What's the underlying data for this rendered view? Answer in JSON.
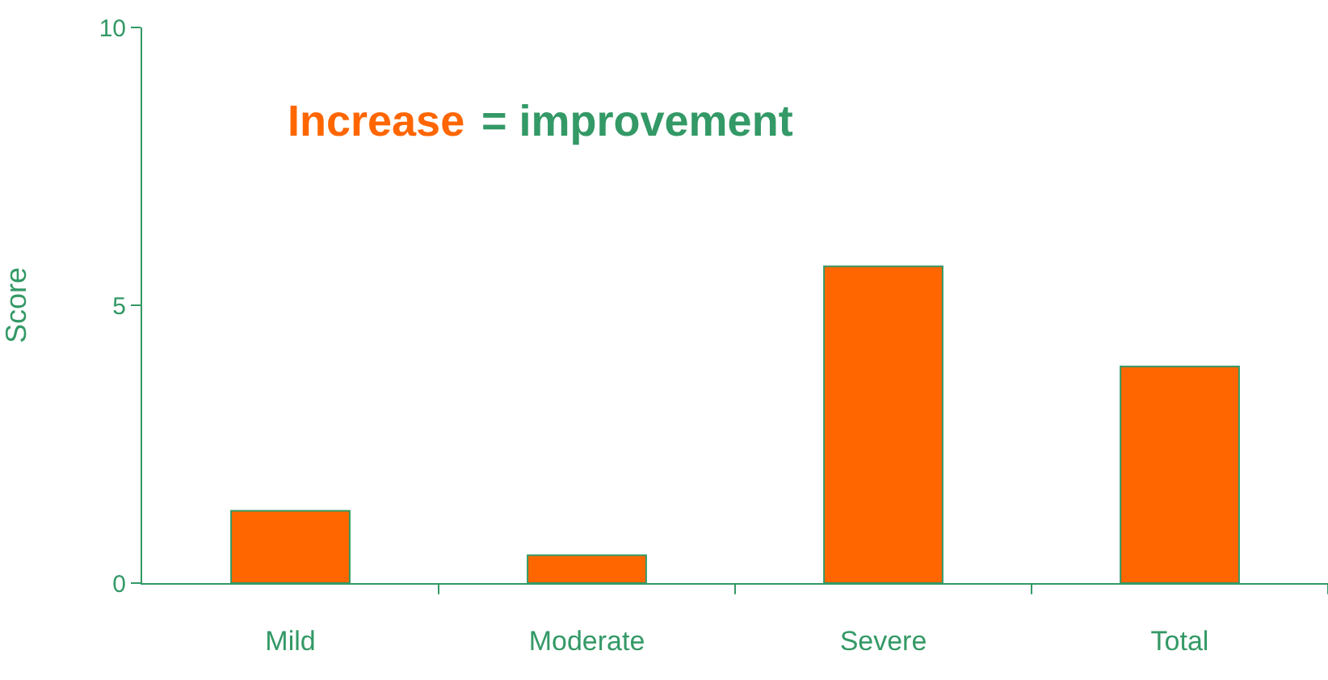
{
  "chart_data": {
    "type": "bar",
    "ylabel": "Score",
    "categories": [
      "Mild",
      "Moderate",
      "Severe",
      "Total"
    ],
    "values": [
      1.3,
      0.5,
      5.7,
      3.9
    ],
    "color": "#ff6600",
    "ylim": [
      0,
      10
    ],
    "yticks": [
      0,
      5,
      10
    ],
    "grid": false,
    "legend": false,
    "annotations": [
      "Increase",
      "= improvement"
    ]
  }
}
